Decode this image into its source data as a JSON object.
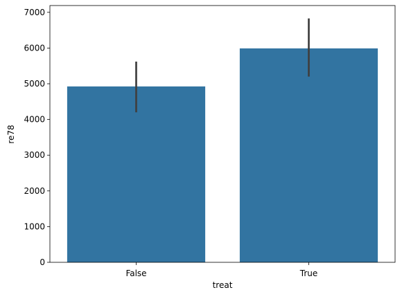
{
  "chart_data": {
    "type": "bar",
    "x_label": "treat",
    "y_label": "re78",
    "categories": [
      "False",
      "True"
    ],
    "values": [
      4925,
      5990
    ],
    "ci": [
      [
        4200,
        5620
      ],
      [
        5200,
        6830
      ]
    ],
    "color": "#3274a1",
    "error_color": "#3f3f3f",
    "ylim": [
      0,
      7190
    ],
    "yticks": [
      0,
      1000,
      2000,
      3000,
      4000,
      5000,
      6000,
      7000
    ],
    "grid": false
  }
}
